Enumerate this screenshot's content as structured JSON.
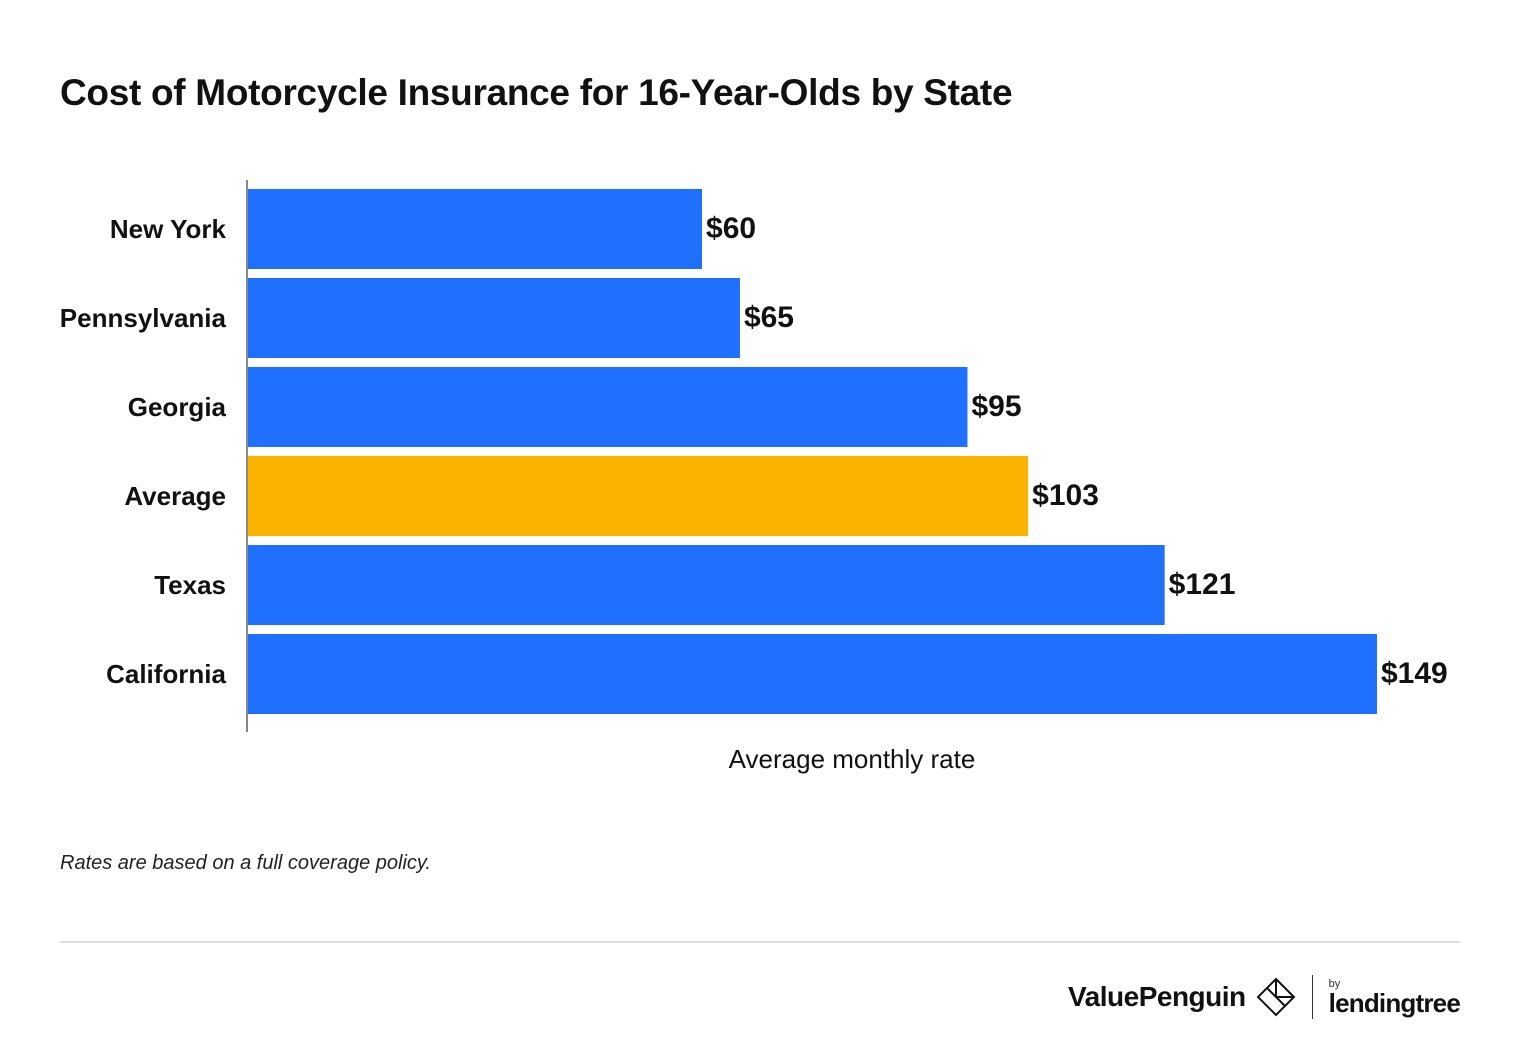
{
  "chart_data": {
    "type": "bar",
    "orientation": "horizontal",
    "title": "Cost of Motorcycle Insurance for 16-Year-Olds by State",
    "xlabel": "Average monthly rate",
    "ylabel": "",
    "categories": [
      "New York",
      "Pennsylvania",
      "Georgia",
      "Average",
      "Texas",
      "California"
    ],
    "values": [
      60,
      65,
      95,
      103,
      121,
      149
    ],
    "value_labels": [
      "$60",
      "$65",
      "$95",
      "$103",
      "$121",
      "$149"
    ],
    "highlight": "Average",
    "colors": {
      "default": "#2070ff",
      "highlight": "#f9b300",
      "axis": "#888888"
    },
    "xlim": [
      0,
      149
    ],
    "grid": false,
    "legend": "none"
  },
  "footnote": "Rates are based on a full coverage policy.",
  "brand": {
    "name": "ValuePenguin",
    "by": "by",
    "partner": "lendingtree",
    "icon": "valuepenguin-diamond-icon"
  }
}
